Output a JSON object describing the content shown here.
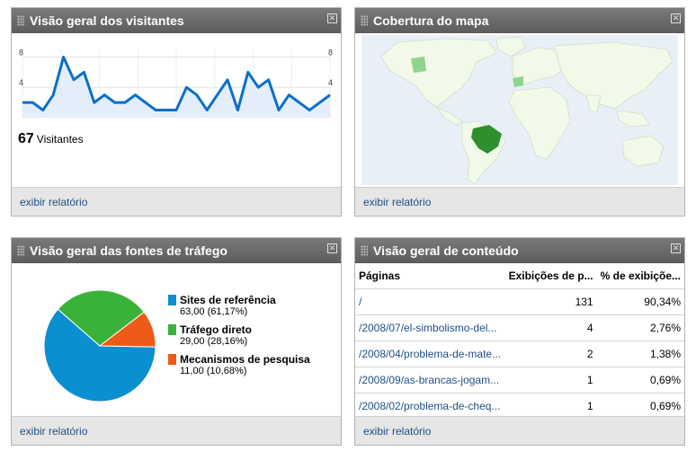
{
  "visitors": {
    "title": "Visão geral dos visitantes",
    "count": "67",
    "count_label": "Visitantes",
    "footer_link": "exibir relatório",
    "chart_data": {
      "type": "area",
      "y_ticks_left": [
        "8",
        "4"
      ],
      "y_ticks_right": [
        "8",
        "4"
      ],
      "ylim": [
        0,
        9
      ],
      "values": [
        2,
        2,
        1,
        3,
        8,
        5,
        6,
        2,
        3,
        2,
        2,
        3,
        2,
        1,
        1,
        1,
        4,
        3,
        1,
        3,
        5,
        1,
        6,
        4,
        5,
        1,
        3,
        2,
        1,
        2,
        3
      ],
      "colors": {
        "line": "#0b6fc9",
        "fill": "#e4eefa"
      }
    }
  },
  "map": {
    "title": "Cobertura do mapa",
    "footer_link": "exibir relatório",
    "colors": {
      "ocean": "#e8eff7",
      "land": "#f2f9e9",
      "highlight": "#2d8f2d",
      "light": "#8fd48f"
    }
  },
  "traffic": {
    "title": "Visão geral das fontes de tráfego",
    "footer_link": "exibir relatório",
    "chart_data": {
      "type": "pie",
      "slices": [
        {
          "name": "Sites de referência",
          "value": 63.0,
          "label": "63,00 (61,17%)",
          "color": "#0a8fd1"
        },
        {
          "name": "Tráfego direto",
          "value": 29.0,
          "label": "29,00 (28,16%)",
          "color": "#3ab23a"
        },
        {
          "name": "Mecanismos de pesquisa",
          "value": 11.0,
          "label": "11,00 (10,68%)",
          "color": "#ee5a17"
        }
      ]
    }
  },
  "content": {
    "title": "Visão geral de conteúdo",
    "footer_link": "exibir relatório",
    "columns": [
      "Páginas",
      "Exibições de p...",
      "% de exibiçõe..."
    ],
    "rows": [
      {
        "page": "/",
        "views": "131",
        "pct": "90,34%"
      },
      {
        "page": "/2008/07/el-simbolismo-del...",
        "views": "4",
        "pct": "2,76%"
      },
      {
        "page": "/2008/04/problema-de-mate...",
        "views": "2",
        "pct": "1,38%"
      },
      {
        "page": "/2008/09/as-brancas-jogam...",
        "views": "1",
        "pct": "0,69%"
      },
      {
        "page": "/2008/02/problema-de-cheq...",
        "views": "1",
        "pct": "0,69%"
      }
    ]
  }
}
